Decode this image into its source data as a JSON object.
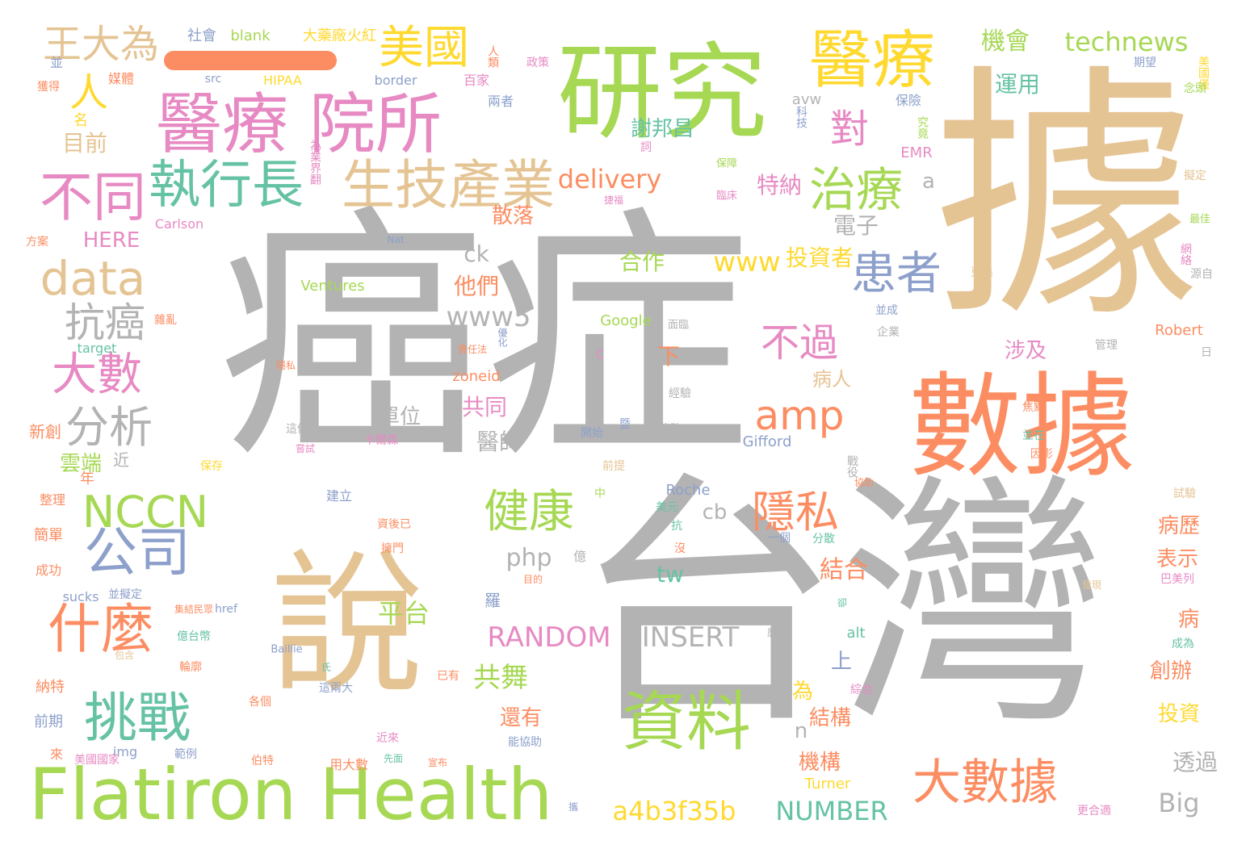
{
  "words": [
    {
      "text": "據",
      "color": "#e5c494"
    },
    {
      "text": "癌症",
      "color": "#b3b3b3"
    },
    {
      "text": "台灣",
      "color": "#b3b3b3"
    },
    {
      "text": "研究",
      "color": "#a6d854"
    },
    {
      "text": "數據",
      "color": "#fc8d62"
    },
    {
      "text": "說",
      "color": "#e5c494"
    },
    {
      "text": "Flatiron Health",
      "color": "#a6d854"
    },
    {
      "text": "醫療 院所",
      "color": "#e78ac3"
    },
    {
      "text": "資料",
      "color": "#a6d854"
    },
    {
      "text": "醫療",
      "color": "#ffd92f"
    },
    {
      "text": "生技產業",
      "color": "#e5c494"
    },
    {
      "text": "大數據",
      "color": "#fc8d62"
    },
    {
      "text": "執行長",
      "color": "#66c2a5"
    },
    {
      "text": "挑戰",
      "color": "#66c2a5"
    },
    {
      "text": "不同",
      "color": "#e78ac3"
    },
    {
      "text": "公司",
      "color": "#8da0cb"
    },
    {
      "text": "什麼",
      "color": "#fc8d62"
    },
    {
      "text": "美國",
      "color": "#ffd92f"
    },
    {
      "text": "治療",
      "color": "#a6d854"
    },
    {
      "text": "data",
      "color": "#e5c494"
    },
    {
      "text": "大數",
      "color": "#e78ac3"
    },
    {
      "text": "患者",
      "color": "#8da0cb"
    },
    {
      "text": "健康",
      "color": "#a6d854"
    },
    {
      "text": "隱私",
      "color": "#fc8d62"
    },
    {
      "text": "分析",
      "color": "#b3b3b3"
    },
    {
      "text": "NCCN",
      "color": "#a6d854"
    },
    {
      "text": "amp",
      "color": "#fc8d62"
    },
    {
      "text": "抗癌",
      "color": "#b3b3b3"
    },
    {
      "text": "王大為",
      "color": "#e5c494"
    },
    {
      "text": "對",
      "color": "#e78ac3"
    },
    {
      "text": "不過",
      "color": "#e78ac3"
    },
    {
      "text": "人",
      "color": "#ffd92f"
    },
    {
      "text": "a4b3f35b",
      "color": "#ffd92f"
    },
    {
      "text": "RANDOM",
      "color": "#e78ac3"
    },
    {
      "text": "INSERT",
      "color": "#b3b3b3"
    },
    {
      "text": "NUMBER",
      "color": "#66c2a5"
    },
    {
      "text": "delivery",
      "color": "#fc8d62"
    },
    {
      "text": "機會",
      "color": "#a6d854"
    },
    {
      "text": "technews",
      "color": "#a6d854"
    },
    {
      "text": "www",
      "color": "#ffd92f"
    },
    {
      "text": "www5",
      "color": "#b3b3b3"
    },
    {
      "text": "平台",
      "color": "#a6d854"
    },
    {
      "text": "共舞",
      "color": "#a6d854"
    },
    {
      "text": "php",
      "color": "#b3b3b3"
    },
    {
      "text": "結合",
      "color": "#fc8d62"
    },
    {
      "text": "Big",
      "color": "#b3b3b3"
    },
    {
      "text": "特納",
      "color": "#e78ac3"
    },
    {
      "text": "合作",
      "color": "#a6d854"
    },
    {
      "text": "投資者",
      "color": "#ffd92f"
    },
    {
      "text": "電子",
      "color": "#b3b3b3"
    },
    {
      "text": "散落",
      "color": "#fc8d62"
    },
    {
      "text": "謝邦昌",
      "color": "#66c2a5"
    },
    {
      "text": "運用",
      "color": "#66c2a5"
    },
    {
      "text": "目前",
      "color": "#e5c494"
    },
    {
      "text": "HERE",
      "color": "#e78ac3"
    },
    {
      "text": "他們",
      "color": "#fc8d62"
    },
    {
      "text": "共同",
      "color": "#e78ac3"
    },
    {
      "text": "醫師",
      "color": "#b3b3b3"
    },
    {
      "text": "cb",
      "color": "#b3b3b3"
    },
    {
      "text": "tw",
      "color": "#66c2a5"
    },
    {
      "text": "單位",
      "color": "#b3b3b3"
    },
    {
      "text": "涉及",
      "color": "#e78ac3"
    },
    {
      "text": "創辦",
      "color": "#fc8d62"
    },
    {
      "text": "病歷",
      "color": "#fc8d62"
    },
    {
      "text": "表示",
      "color": "#fc8d62"
    },
    {
      "text": "結構",
      "color": "#fc8d62"
    },
    {
      "text": "機構",
      "color": "#fc8d62"
    },
    {
      "text": "透過",
      "color": "#b3b3b3"
    },
    {
      "text": "上",
      "color": "#8da0cb"
    },
    {
      "text": "投資",
      "color": "#ffd92f"
    },
    {
      "text": "雲端",
      "color": "#a6d854"
    },
    {
      "text": "還有",
      "color": "#fc8d62"
    },
    {
      "text": "病人",
      "color": "#e5c494"
    },
    {
      "text": "社會",
      "color": "#8da0cb"
    },
    {
      "text": "blank",
      "color": "#a6d854"
    },
    {
      "text": "大藥廠",
      "color": "#ffd92f"
    },
    {
      "text": "火紅",
      "color": "#ffd92f"
    },
    {
      "text": "名",
      "color": "#ffd92f"
    },
    {
      "text": "Ventures",
      "color": "#a6d854"
    },
    {
      "text": "border",
      "color": "#8da0cb"
    },
    {
      "text": "HIPAA",
      "color": "#ffd92f"
    },
    {
      "text": "src",
      "color": "#8da0cb"
    },
    {
      "text": "Robert",
      "color": "#fc8d62"
    },
    {
      "text": "Gifford",
      "color": "#8da0cb"
    },
    {
      "text": "Roche",
      "color": "#8da0cb"
    },
    {
      "text": "Turner",
      "color": "#ffd92f"
    },
    {
      "text": "Google",
      "color": "#a6d854"
    },
    {
      "text": "target",
      "color": "#66c2a5"
    },
    {
      "text": "zoneid",
      "color": "#fc8d62"
    },
    {
      "text": "alt",
      "color": "#66c2a5"
    },
    {
      "text": "href",
      "color": "#8da0cb"
    },
    {
      "text": "sucks",
      "color": "#8da0cb"
    },
    {
      "text": "Baillie",
      "color": "#8da0cb"
    },
    {
      "text": "Carlson",
      "color": "#e78ac3"
    },
    {
      "text": "Nat",
      "color": "#8da0cb"
    },
    {
      "text": "EMR",
      "color": "#e78ac3"
    },
    {
      "text": "img",
      "color": "#8da0cb"
    },
    {
      "text": "avw",
      "color": "#b3b3b3"
    },
    {
      "text": "ck",
      "color": "#b3b3b3"
    },
    {
      "text": "為",
      "color": "#ffd92f"
    },
    {
      "text": "n",
      "color": "#b3b3b3"
    },
    {
      "text": "a",
      "color": "#b3b3b3"
    },
    {
      "text": "下",
      "color": "#fc8d62"
    },
    {
      "text": "病",
      "color": "#fc8d62"
    },
    {
      "text": "羅",
      "color": "#8da0cb"
    },
    {
      "text": "新創",
      "color": "#fc8d62"
    },
    {
      "text": "年",
      "color": "#fc8d62"
    },
    {
      "text": "近",
      "color": "#b3b3b3"
    },
    {
      "text": "整理",
      "color": "#fc8d62"
    },
    {
      "text": "簡單",
      "color": "#fc8d62"
    },
    {
      "text": "成功",
      "color": "#fc8d62"
    },
    {
      "text": "納特",
      "color": "#fc8d62"
    },
    {
      "text": "前期",
      "color": "#8da0cb"
    },
    {
      "text": "來",
      "color": "#fc8d62"
    },
    {
      "text": "並",
      "color": "#8da0cb"
    },
    {
      "text": "媒體",
      "color": "#fc8d62"
    },
    {
      "text": "獲得",
      "color": "#fc8d62"
    },
    {
      "text": "人類",
      "color": "#fc8d62"
    },
    {
      "text": "政策",
      "color": "#e78ac3"
    },
    {
      "text": "百家",
      "color": "#e78ac3"
    },
    {
      "text": "兩者",
      "color": "#8da0cb"
    },
    {
      "text": "科技",
      "color": "#8da0cb"
    },
    {
      "text": "保險",
      "color": "#8da0cb"
    },
    {
      "text": "究竟",
      "color": "#a6d854"
    },
    {
      "text": "期望",
      "color": "#8da0cb"
    },
    {
      "text": "美國僅",
      "color": "#ffd92f"
    },
    {
      "text": "念頭",
      "color": "#a6d854"
    },
    {
      "text": "擬定",
      "color": "#e5c494"
    },
    {
      "text": "最佳",
      "color": "#a6d854"
    },
    {
      "text": "網絡",
      "color": "#e78ac3"
    },
    {
      "text": "源自",
      "color": "#b3b3b3"
    },
    {
      "text": "保障",
      "color": "#a6d854"
    },
    {
      "text": "臨床",
      "color": "#e78ac3"
    },
    {
      "text": "捷福",
      "color": "#e78ac3"
    },
    {
      "text": "為業界翻",
      "color": "#e78ac3"
    },
    {
      "text": "並成",
      "color": "#8da0cb"
    },
    {
      "text": "企業",
      "color": "#b3b3b3"
    },
    {
      "text": "管理",
      "color": "#b3b3b3"
    },
    {
      "text": "面臨",
      "color": "#b3b3b3"
    },
    {
      "text": "優化",
      "color": "#8da0cb"
    },
    {
      "text": "責任法",
      "color": "#fc8d62"
    },
    {
      "text": "隱私",
      "color": "#fc8d62"
    },
    {
      "text": "經驗",
      "color": "#b3b3b3"
    },
    {
      "text": "策略",
      "color": "#b3b3b3"
    },
    {
      "text": "這個",
      "color": "#b3b3b3"
    },
    {
      "text": "嘗試",
      "color": "#e78ac3"
    },
    {
      "text": "卡爾森",
      "color": "#e78ac3"
    },
    {
      "text": "開始",
      "color": "#8da0cb"
    },
    {
      "text": "保存",
      "color": "#ffd92f"
    },
    {
      "text": "前提",
      "color": "#e5c494"
    },
    {
      "text": "戰役",
      "color": "#b3b3b3"
    },
    {
      "text": "協助",
      "color": "#fc8d62"
    },
    {
      "text": "因影",
      "color": "#fc8d62"
    },
    {
      "text": "試驗",
      "color": "#e5c494"
    },
    {
      "text": "焦點",
      "color": "#fc8d62"
    },
    {
      "text": "並在",
      "color": "#66c2a5"
    },
    {
      "text": "中",
      "color": "#a6d854"
    },
    {
      "text": "美元",
      "color": "#66c2a5"
    },
    {
      "text": "建立",
      "color": "#8da0cb"
    },
    {
      "text": "資後已",
      "color": "#fc8d62"
    },
    {
      "text": "擁門",
      "color": "#fc8d62"
    },
    {
      "text": "目的",
      "color": "#fc8d62"
    },
    {
      "text": "並擬定",
      "color": "#8da0cb"
    },
    {
      "text": "集結民眾",
      "color": "#fc8d62"
    },
    {
      "text": "億",
      "color": "#b3b3b3"
    },
    {
      "text": "抗",
      "color": "#66c2a5"
    },
    {
      "text": "沒",
      "color": "#fc8d62"
    },
    {
      "text": "一個",
      "color": "#8da0cb"
    },
    {
      "text": "分散",
      "color": "#66c2a5"
    },
    {
      "text": "億台幣",
      "color": "#66c2a5"
    },
    {
      "text": "輪廓",
      "color": "#fc8d62"
    },
    {
      "text": "包含",
      "color": "#e5c494"
    },
    {
      "text": "已有",
      "color": "#fc8d62"
    },
    {
      "text": "氏",
      "color": "#66c2a5"
    },
    {
      "text": "這兩大",
      "color": "#8da0cb"
    },
    {
      "text": "各個",
      "color": "#fc8d62"
    },
    {
      "text": "歷數",
      "color": "#b3b3b3"
    },
    {
      "text": "卻",
      "color": "#66c2a5"
    },
    {
      "text": "綜合",
      "color": "#e78ac3"
    },
    {
      "text": "近來",
      "color": "#e78ac3"
    },
    {
      "text": "先面",
      "color": "#66c2a5"
    },
    {
      "text": "宣布",
      "color": "#fc8d62"
    },
    {
      "text": "能協助",
      "color": "#8da0cb"
    },
    {
      "text": "範例",
      "color": "#8da0cb"
    },
    {
      "text": "美國國家",
      "color": "#e78ac3"
    },
    {
      "text": "伯特",
      "color": "#fc8d62"
    },
    {
      "text": "用大數",
      "color": "#fc8d62"
    },
    {
      "text": "攜",
      "color": "#8da0cb"
    },
    {
      "text": "更合適",
      "color": "#e78ac3"
    },
    {
      "text": "巴美列",
      "color": "#e78ac3"
    },
    {
      "text": "成為",
      "color": "#66c2a5"
    },
    {
      "text": "發現",
      "color": "#e5c494"
    },
    {
      "text": "方案",
      "color": "#fc8d62"
    },
    {
      "text": "雜亂",
      "color": "#fc8d62"
    },
    {
      "text": "蒐集",
      "color": "#e5c494"
    },
    {
      "text": "C",
      "color": "#e78ac3"
    },
    {
      "text": "w",
      "color": "#b3b3b3"
    },
    {
      "text": "日",
      "color": "#b3b3b3"
    },
    {
      "text": "詞",
      "color": "#e78ac3"
    },
    {
      "text": "暨",
      "color": "#8da0cb"
    }
  ]
}
